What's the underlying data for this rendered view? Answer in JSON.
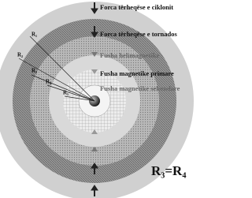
{
  "labels": [
    "Forca tërheqëse e ciklonit",
    "Forca tërheqëse e tornados",
    "Fusha helimagnetike",
    "Fusha magnetike primare",
    "Fusha magnetike sekondare"
  ],
  "radii": [
    "R₁",
    "R₂",
    "R₃",
    "R₄",
    "R₅"
  ],
  "equation": "R₃=R₄"
}
